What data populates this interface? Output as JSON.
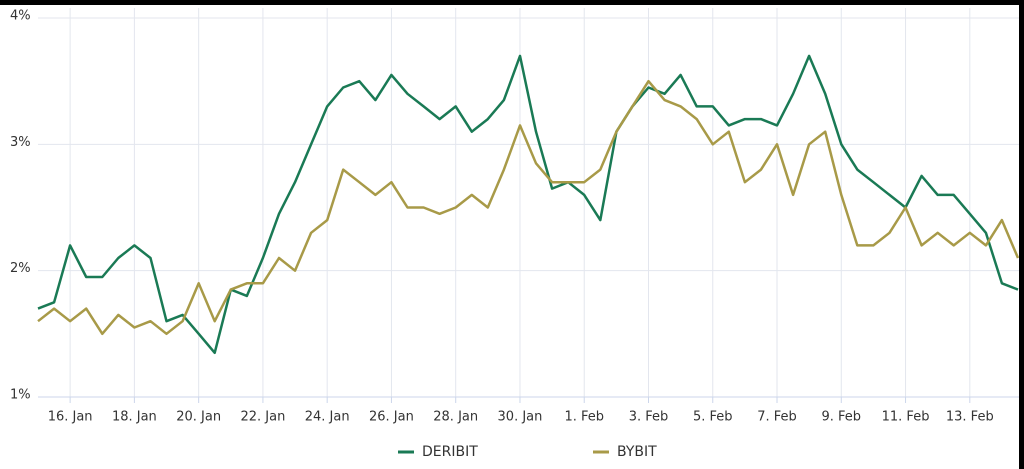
{
  "chart_data": {
    "type": "line",
    "categories": [
      null,
      null,
      "16. Jan",
      null,
      null,
      null,
      "18. Jan",
      null,
      null,
      null,
      "20. Jan",
      null,
      null,
      null,
      "22. Jan",
      null,
      null,
      null,
      "24. Jan",
      null,
      null,
      null,
      "26. Jan",
      null,
      null,
      null,
      "28. Jan",
      null,
      null,
      null,
      "30. Jan",
      null,
      null,
      null,
      "1. Feb",
      null,
      null,
      null,
      "3. Feb",
      null,
      null,
      null,
      "5. Feb",
      null,
      null,
      null,
      "7. Feb",
      null,
      null,
      null,
      "9. Feb",
      null,
      null,
      null,
      "11. Feb",
      null,
      null,
      null,
      "13. Feb",
      null,
      null,
      null
    ],
    "series": [
      {
        "name": "DERIBIT",
        "color": "#1a7a55",
        "values": [
          1.7,
          1.75,
          2.2,
          1.95,
          1.95,
          2.1,
          2.2,
          2.1,
          1.6,
          1.65,
          1.5,
          1.35,
          1.85,
          1.8,
          2.1,
          2.45,
          2.7,
          3.0,
          3.3,
          3.45,
          3.5,
          3.35,
          3.55,
          3.4,
          3.3,
          3.2,
          3.3,
          3.1,
          3.2,
          3.35,
          3.7,
          3.1,
          2.65,
          2.7,
          2.6,
          2.4,
          3.1,
          3.3,
          3.45,
          3.4,
          3.55,
          3.3,
          3.3,
          3.15,
          3.2,
          3.2,
          3.15,
          3.4,
          3.7,
          3.4,
          3.0,
          2.8,
          2.7,
          2.6,
          2.5,
          2.75,
          2.6,
          2.6,
          2.45,
          2.3,
          1.9,
          1.85
        ]
      },
      {
        "name": "BYBIT",
        "color": "#a89a48",
        "values": [
          1.6,
          1.7,
          1.6,
          1.7,
          1.5,
          1.65,
          1.55,
          1.6,
          1.5,
          1.6,
          1.9,
          1.6,
          1.85,
          1.9,
          1.9,
          2.1,
          2.0,
          2.3,
          2.4,
          2.8,
          2.7,
          2.6,
          2.7,
          2.5,
          2.5,
          2.45,
          2.5,
          2.6,
          2.5,
          2.8,
          3.15,
          2.85,
          2.7,
          2.7,
          2.7,
          2.8,
          3.1,
          3.3,
          3.5,
          3.35,
          3.3,
          3.2,
          3.0,
          3.1,
          2.7,
          2.8,
          3.0,
          2.6,
          3.0,
          3.1,
          2.6,
          2.2,
          2.2,
          2.3,
          2.5,
          2.2,
          2.3,
          2.2,
          2.3,
          2.2,
          2.4,
          2.1
        ]
      }
    ],
    "ylim": [
      1,
      4
    ],
    "yticks": [
      {
        "value": 1,
        "label": "1%"
      },
      {
        "value": 2,
        "label": "2%"
      },
      {
        "value": 3,
        "label": "3%"
      },
      {
        "value": 4,
        "label": "4%"
      }
    ],
    "grid": true
  }
}
